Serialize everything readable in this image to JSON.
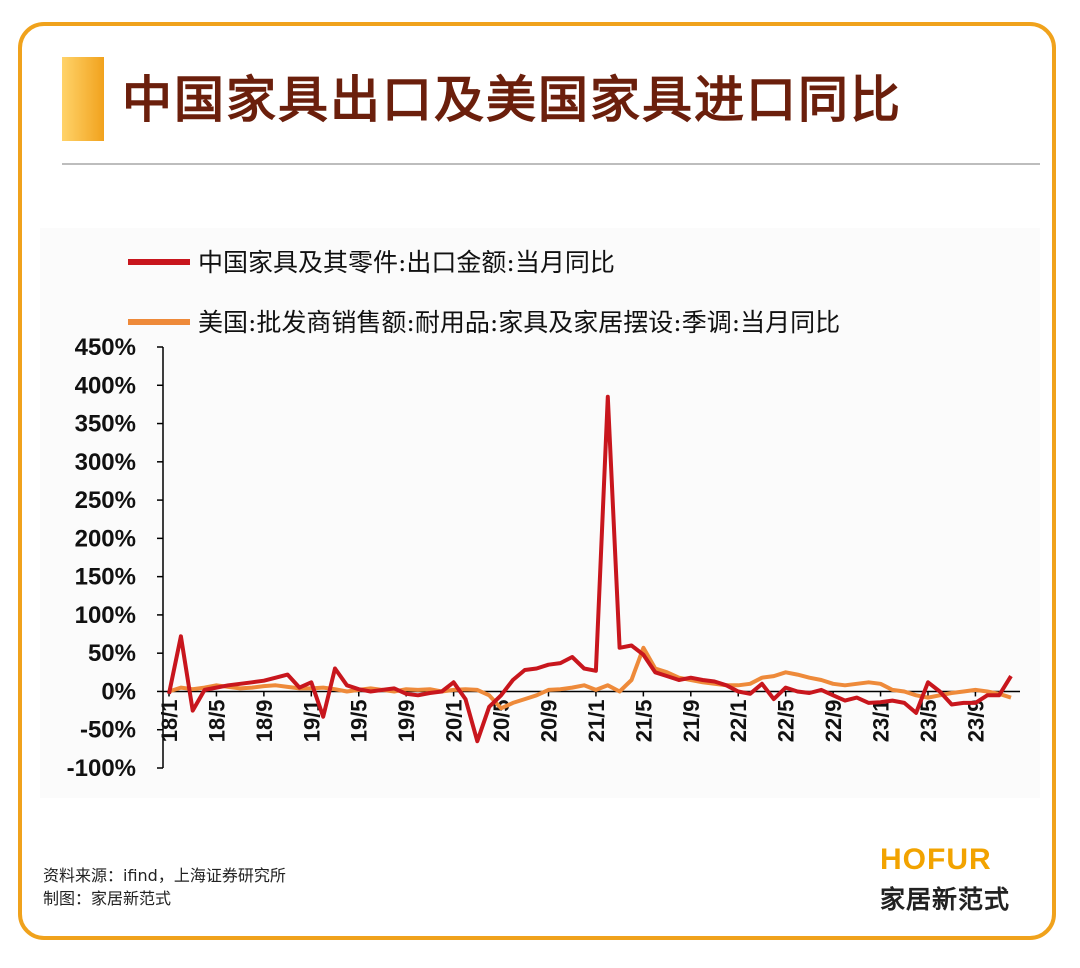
{
  "header": {
    "title": "中国家具出口及美国家具进口同比"
  },
  "footer": {
    "source": "资料来源：ifind，上海证券研究所",
    "made_by": "制图：家居新范式",
    "brand_en": "HOFUR",
    "brand_cn": "家居新范式"
  },
  "colors": {
    "border": "#f0a21c",
    "title": "#6b1f0c",
    "series_china": "#c8161d",
    "series_us": "#ee8a3a"
  },
  "chart_data": {
    "type": "line",
    "ylim": [
      -100,
      450
    ],
    "yticks": [
      -100,
      -50,
      0,
      50,
      100,
      150,
      200,
      250,
      300,
      350,
      400,
      450
    ],
    "ytick_labels": [
      "-100%",
      "-50%",
      "0%",
      "50%",
      "100%",
      "150%",
      "200%",
      "250%",
      "300%",
      "350%",
      "400%",
      "450%"
    ],
    "xtick_labels": [
      "18/1",
      "18/5",
      "18/9",
      "19/1",
      "19/5",
      "19/9",
      "20/1",
      "20/5",
      "20/9",
      "21/1",
      "21/5",
      "21/9",
      "22/1",
      "22/5",
      "22/9",
      "23/1",
      "23/5",
      "23/9"
    ],
    "x": [
      "18/1",
      "18/2",
      "18/3",
      "18/4",
      "18/5",
      "18/6",
      "18/7",
      "18/8",
      "18/9",
      "18/10",
      "18/11",
      "18/12",
      "19/1",
      "19/2",
      "19/3",
      "19/4",
      "19/5",
      "19/6",
      "19/7",
      "19/8",
      "19/9",
      "19/10",
      "19/11",
      "19/12",
      "20/1",
      "20/2",
      "20/3",
      "20/4",
      "20/5",
      "20/6",
      "20/7",
      "20/8",
      "20/9",
      "20/10",
      "20/11",
      "20/12",
      "21/1",
      "21/2",
      "21/3",
      "21/4",
      "21/5",
      "21/6",
      "21/7",
      "21/8",
      "21/9",
      "21/10",
      "21/11",
      "21/12",
      "22/1",
      "22/2",
      "22/3",
      "22/4",
      "22/5",
      "22/6",
      "22/7",
      "22/8",
      "22/9",
      "22/10",
      "22/11",
      "22/12",
      "23/1",
      "23/2",
      "23/3",
      "23/4",
      "23/5",
      "23/6",
      "23/7",
      "23/8",
      "23/9",
      "23/10",
      "23/11",
      "23/12"
    ],
    "series": [
      {
        "name": "中国家具及其零件:出口金额:当月同比",
        "values": [
          -3,
          72,
          -25,
          2,
          5,
          8,
          10,
          12,
          14,
          18,
          22,
          5,
          12,
          -33,
          30,
          8,
          3,
          0,
          2,
          4,
          -3,
          -5,
          -2,
          0,
          12,
          -10,
          -65,
          -20,
          -5,
          15,
          28,
          30,
          35,
          37,
          45,
          30,
          27,
          385,
          57,
          60,
          48,
          25,
          20,
          15,
          18,
          15,
          13,
          8,
          0,
          -3,
          10,
          -10,
          5,
          0,
          -2,
          2,
          -5,
          -12,
          -8,
          -15,
          -14,
          -12,
          -15,
          -28,
          12,
          0,
          -17,
          -15,
          -15,
          -5,
          -5,
          20
        ]
      },
      {
        "name": "美国:批发商销售额:耐用品:家具及家居摆设:季调:当月同比",
        "values": [
          0,
          5,
          3,
          5,
          8,
          6,
          4,
          5,
          7,
          8,
          6,
          4,
          4,
          5,
          3,
          0,
          2,
          4,
          2,
          0,
          3,
          2,
          3,
          0,
          2,
          3,
          2,
          -5,
          -22,
          -15,
          -10,
          -5,
          2,
          3,
          5,
          8,
          2,
          8,
          0,
          15,
          57,
          30,
          25,
          18,
          15,
          12,
          10,
          8,
          8,
          10,
          18,
          20,
          25,
          22,
          18,
          15,
          10,
          8,
          10,
          12,
          10,
          2,
          0,
          -5,
          -8,
          -5,
          -2,
          0,
          2,
          0,
          -3,
          -8
        ]
      }
    ]
  }
}
